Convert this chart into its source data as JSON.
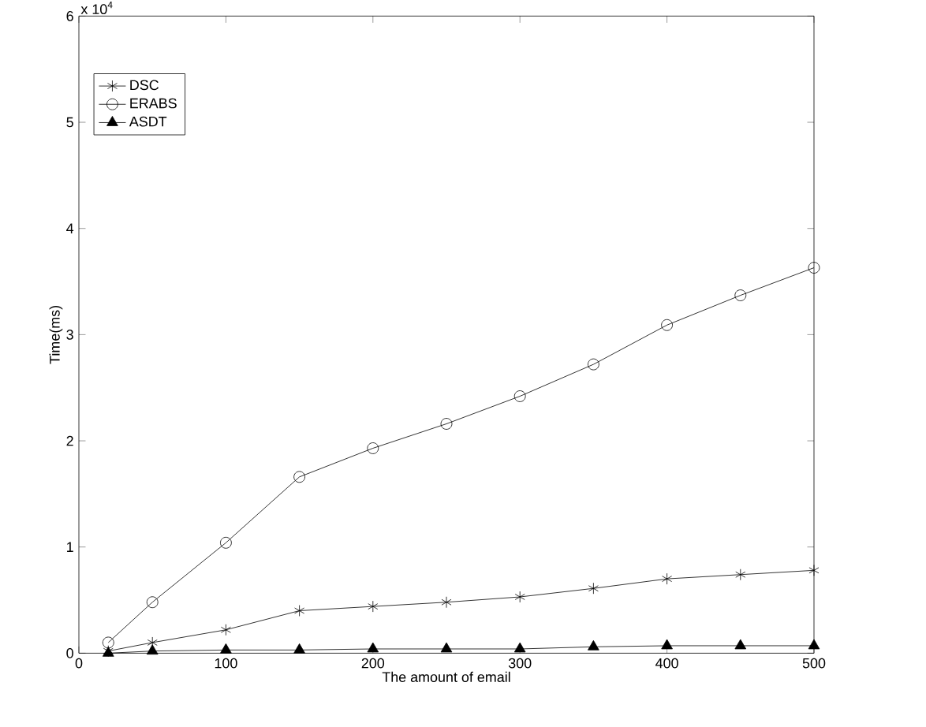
{
  "chart_data": {
    "type": "line",
    "xlabel": "The amount of email",
    "ylabel": "Time(ms)",
    "annotations": [
      "x 10$^{4}$"
    ],
    "x": [
      20,
      50,
      100,
      150,
      200,
      250,
      300,
      350,
      400,
      450,
      500
    ],
    "series": [
      {
        "name": "DSC",
        "color": "#000000",
        "marker": "cross",
        "values": [
          0.02,
          0.1,
          0.22,
          0.4,
          0.44,
          0.48,
          0.53,
          0.61,
          0.7,
          0.74,
          0.78
        ]
      },
      {
        "name": "ERABS",
        "color": "#000000",
        "marker": "circle",
        "values": [
          0.1,
          0.48,
          1.04,
          1.66,
          1.93,
          2.16,
          2.42,
          2.72,
          3.09,
          3.37,
          3.63
        ]
      },
      {
        "name": "ASDT",
        "color": "#000000",
        "marker": "triangle",
        "values": [
          0,
          0.02,
          0.03,
          0.03,
          0.04,
          0.04,
          0.04,
          0.06,
          0.07,
          0.07,
          0.07
        ]
      }
    ],
    "xlim": [
      0,
      500
    ],
    "xticks": [
      0,
      100,
      200,
      300,
      400,
      500
    ],
    "ylim": [
      0,
      6
    ],
    "yticks": [
      0,
      1,
      2,
      3,
      4,
      5,
      6
    ],
    "legend": "top left",
    "grid": false
  }
}
